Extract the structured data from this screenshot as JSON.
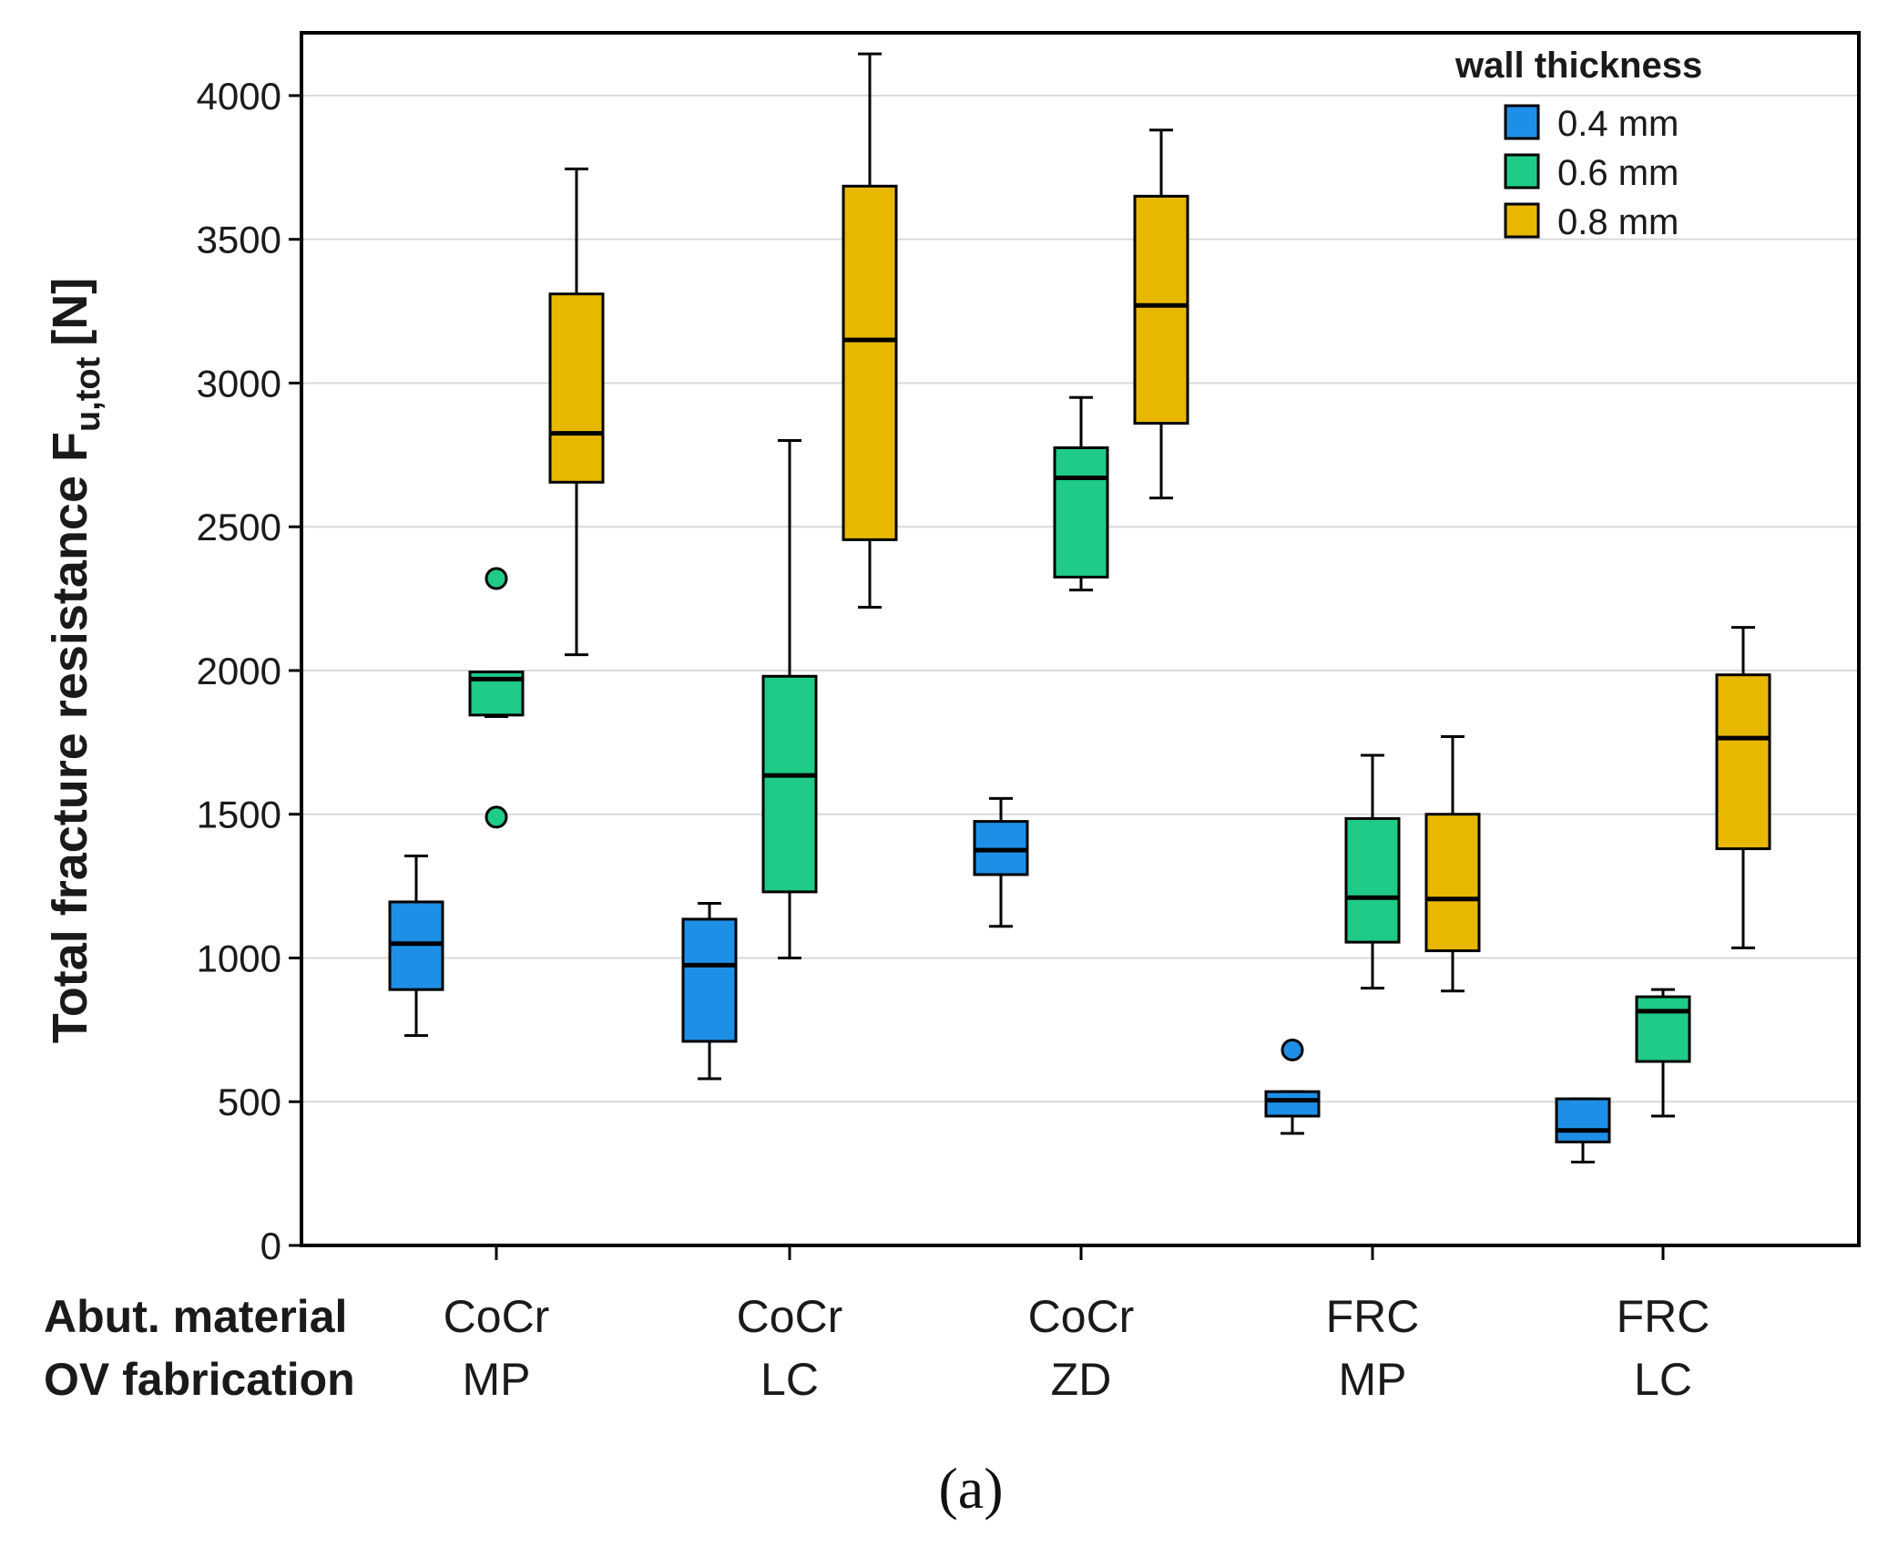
{
  "chart_data": {
    "type": "boxplot",
    "ylabel_main": "Total fracture resistance F",
    "ylabel_sub": "u,tot",
    "ylabel_unit": "[N]",
    "ylim": [
      0,
      4250
    ],
    "yticks": [
      0,
      500,
      1000,
      1500,
      2000,
      2500,
      3000,
      3500,
      4000
    ],
    "grid": true,
    "row_labels": [
      "Abut. material",
      "OV fabrication"
    ],
    "categories": [
      {
        "material": "CoCr",
        "fabrication": "MP"
      },
      {
        "material": "CoCr",
        "fabrication": "LC"
      },
      {
        "material": "CoCr",
        "fabrication": "ZD"
      },
      {
        "material": "FRC",
        "fabrication": "MP"
      },
      {
        "material": "FRC",
        "fabrication": "LC"
      }
    ],
    "legend": {
      "title": "wall thickness",
      "position": "top-right",
      "items": [
        "0.4 mm",
        "0.6 mm",
        "0.8 mm"
      ]
    },
    "colors": [
      "#1E8FE6",
      "#1FCB86",
      "#E8B800"
    ],
    "series": [
      {
        "name": "0.4 mm",
        "boxes": [
          {
            "min": 730,
            "q1": 890,
            "median": 1050,
            "q3": 1195,
            "max": 1355,
            "outliers": []
          },
          {
            "min": 580,
            "q1": 710,
            "median": 975,
            "q3": 1135,
            "max": 1190,
            "outliers": []
          },
          {
            "min": 1110,
            "q1": 1290,
            "median": 1375,
            "q3": 1475,
            "max": 1555,
            "outliers": []
          },
          {
            "min": 390,
            "q1": 450,
            "median": 505,
            "q3": 535,
            "max": 535,
            "outliers": [
              680
            ]
          },
          {
            "min": 290,
            "q1": 360,
            "median": 400,
            "q3": 510,
            "max": 510,
            "outliers": []
          }
        ]
      },
      {
        "name": "0.6 mm",
        "boxes": [
          {
            "min": 1840,
            "q1": 1845,
            "median": 1970,
            "q3": 1995,
            "max": 1995,
            "outliers": [
              2320,
              1490
            ]
          },
          {
            "min": 1000,
            "q1": 1230,
            "median": 1635,
            "q3": 1980,
            "max": 2800,
            "outliers": []
          },
          {
            "min": 2280,
            "q1": 2325,
            "median": 2670,
            "q3": 2775,
            "max": 2950,
            "outliers": []
          },
          {
            "min": 895,
            "q1": 1055,
            "median": 1210,
            "q3": 1485,
            "max": 1705,
            "outliers": []
          },
          {
            "min": 450,
            "q1": 640,
            "median": 815,
            "q3": 865,
            "max": 890,
            "outliers": []
          }
        ]
      },
      {
        "name": "0.8 mm",
        "boxes": [
          {
            "min": 2055,
            "q1": 2655,
            "median": 2825,
            "q3": 3310,
            "max": 3745,
            "outliers": []
          },
          {
            "min": 2220,
            "q1": 2455,
            "median": 3150,
            "q3": 3685,
            "max": 4145,
            "outliers": []
          },
          {
            "min": 2600,
            "q1": 2860,
            "median": 3270,
            "q3": 3650,
            "max": 3880,
            "outliers": []
          },
          {
            "min": 885,
            "q1": 1025,
            "median": 1205,
            "q3": 1500,
            "max": 1770,
            "outliers": []
          },
          {
            "min": 1035,
            "q1": 1380,
            "median": 1765,
            "q3": 1985,
            "max": 2150,
            "outliers": []
          }
        ]
      }
    ]
  },
  "caption": "(a)"
}
